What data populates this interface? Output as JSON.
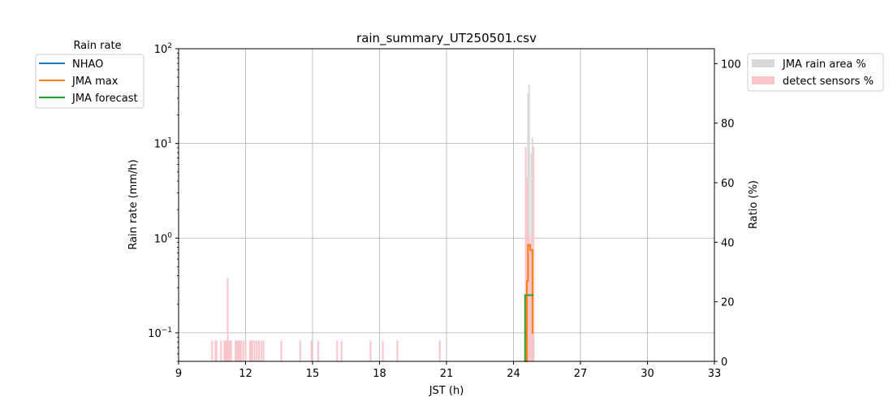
{
  "chart_data": {
    "type": "line",
    "title": "rain_summary_UT250501.csv",
    "xlabel": "JST (h)",
    "ylabel_left": "Rain rate (mm/h)",
    "ylabel_right": "Ratio (%)",
    "xlim": [
      9,
      33
    ],
    "xticks": [
      "9",
      "12",
      "15",
      "18",
      "21",
      "24",
      "27",
      "30",
      "33"
    ],
    "y_left_scale": "log",
    "y_left_lim": [
      0.05,
      100
    ],
    "y_left_ticks": [
      {
        "value": 0.1,
        "base": "10",
        "exp": "−1"
      },
      {
        "value": 1,
        "base": "10",
        "exp": "0"
      },
      {
        "value": 10,
        "base": "10",
        "exp": "1"
      },
      {
        "value": 100,
        "base": "10",
        "exp": "2"
      }
    ],
    "y_right_lim": [
      0,
      105
    ],
    "y_right_ticks": [
      "0",
      "20",
      "40",
      "60",
      "80",
      "100"
    ],
    "grid": true,
    "legend_left": {
      "title": "Rain rate",
      "entries": [
        {
          "name": "NHAO",
          "color": "#1f77b4"
        },
        {
          "name": "JMA max",
          "color": "#ff7f0e"
        },
        {
          "name": "JMA forecast",
          "color": "#2ca02c"
        }
      ]
    },
    "legend_right": {
      "entries": [
        {
          "name": "JMA rain area %",
          "color": "#d9d9d9"
        },
        {
          "name": "detect sensors %",
          "color": "#f9c6cc"
        }
      ]
    },
    "series": [
      {
        "name": "NHAO",
        "color": "#1f77b4",
        "x": [],
        "y": []
      },
      {
        "name": "JMA max",
        "color": "#ff7f0e",
        "step": true,
        "x": [
          24.55,
          24.6,
          24.65,
          24.7,
          24.75,
          24.8,
          24.85,
          24.9
        ],
        "y": [
          0.05,
          0.35,
          0.85,
          0.85,
          0.75,
          0.75,
          0.1,
          0.1
        ]
      },
      {
        "name": "JMA forecast",
        "color": "#2ca02c",
        "step": true,
        "x": [
          24.5,
          24.52,
          24.9
        ],
        "y": [
          0.05,
          0.25,
          0.25
        ]
      }
    ],
    "bars_jma_rain_area_pct": {
      "color": "#d9d9d9",
      "x": [
        24.55,
        24.6,
        24.65,
        24.7,
        24.75,
        24.8,
        24.85,
        24.9
      ],
      "y": [
        40,
        62,
        90,
        93,
        30,
        70,
        75,
        15
      ]
    },
    "bars_detect_sensors_pct": {
      "color": "#f9c6cc",
      "x": [
        10.5,
        10.65,
        10.7,
        10.9,
        11.05,
        11.1,
        11.15,
        11.2,
        11.25,
        11.3,
        11.35,
        11.55,
        11.6,
        11.65,
        11.7,
        11.75,
        11.8,
        11.9,
        12.0,
        12.2,
        12.25,
        12.3,
        12.4,
        12.5,
        12.6,
        12.7,
        12.8,
        13.6,
        14.45,
        14.95,
        15.25,
        16.1,
        16.3,
        17.6,
        18.15,
        18.8,
        20.7,
        24.55,
        24.6,
        24.65,
        24.7,
        24.75,
        24.8,
        24.85,
        24.9
      ],
      "y": [
        7,
        7,
        7,
        7,
        7,
        7,
        7,
        28,
        7,
        7,
        7,
        7,
        7,
        7,
        7,
        7,
        7,
        7,
        7,
        7,
        7,
        7,
        7,
        7,
        7,
        7,
        7,
        7,
        7,
        7,
        7,
        7,
        7,
        7,
        7,
        7,
        7,
        72,
        60,
        43,
        42,
        38,
        43,
        15,
        72
      ]
    }
  }
}
